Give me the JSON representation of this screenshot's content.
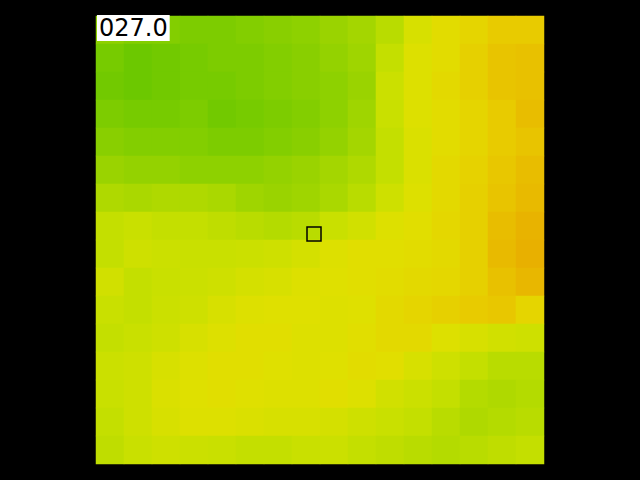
{
  "chart_data": {
    "type": "heatmap",
    "title": "027.0",
    "cells": [
      [
        25.2,
        25.0,
        25.0,
        24.9,
        24.9,
        25.0,
        25.1,
        25.2,
        25.4,
        25.6,
        26.0,
        26.8,
        27.3,
        27.6,
        28.0,
        28.0
      ],
      [
        24.8,
        24.6,
        24.7,
        24.8,
        24.9,
        24.9,
        25.0,
        25.1,
        25.3,
        25.5,
        26.2,
        27.0,
        27.3,
        27.8,
        28.2,
        28.3
      ],
      [
        24.7,
        24.6,
        24.7,
        24.8,
        24.8,
        24.9,
        25.0,
        25.1,
        25.2,
        25.4,
        26.4,
        27.0,
        27.4,
        27.8,
        28.2,
        28.3
      ],
      [
        24.9,
        24.8,
        24.8,
        24.9,
        24.7,
        24.8,
        24.9,
        25.0,
        25.2,
        25.5,
        26.3,
        27.0,
        27.3,
        27.6,
        28.0,
        28.4
      ],
      [
        25.1,
        25.0,
        25.0,
        25.0,
        24.9,
        24.9,
        25.0,
        25.1,
        25.3,
        25.6,
        26.2,
        26.9,
        27.3,
        27.6,
        28.0,
        28.2
      ],
      [
        25.4,
        25.3,
        25.3,
        25.2,
        25.2,
        25.2,
        25.3,
        25.4,
        25.6,
        25.8,
        26.2,
        26.9,
        27.4,
        27.7,
        28.1,
        28.4
      ],
      [
        25.8,
        25.7,
        25.8,
        25.8,
        25.7,
        25.5,
        25.4,
        25.5,
        25.7,
        26.0,
        26.5,
        27.0,
        27.4,
        27.8,
        28.2,
        28.5
      ],
      [
        26.2,
        26.3,
        26.2,
        26.2,
        26.1,
        26.0,
        25.9,
        26.0,
        26.3,
        26.6,
        27.0,
        27.2,
        27.5,
        27.8,
        28.4,
        28.7
      ],
      [
        26.2,
        26.5,
        26.4,
        26.3,
        26.3,
        26.4,
        26.5,
        26.7,
        27.0,
        27.2,
        27.2,
        27.3,
        27.4,
        27.8,
        28.5,
        28.8
      ],
      [
        26.6,
        26.2,
        26.3,
        26.4,
        26.5,
        26.7,
        26.8,
        27.0,
        27.1,
        27.2,
        27.3,
        27.4,
        27.5,
        27.8,
        28.3,
        28.6
      ],
      [
        26.3,
        26.2,
        26.4,
        26.5,
        26.8,
        27.0,
        27.1,
        27.1,
        27.0,
        27.1,
        27.4,
        27.6,
        27.8,
        28.0,
        28.1,
        27.6
      ],
      [
        26.2,
        26.3,
        26.5,
        26.8,
        27.0,
        27.2,
        27.2,
        27.0,
        27.0,
        27.2,
        27.4,
        27.4,
        27.0,
        26.8,
        26.6,
        26.5
      ],
      [
        26.4,
        26.5,
        26.8,
        27.0,
        27.2,
        27.2,
        27.1,
        27.0,
        27.1,
        27.3,
        27.2,
        26.8,
        26.5,
        26.2,
        26.0,
        26.0
      ],
      [
        26.3,
        26.5,
        26.9,
        27.1,
        27.2,
        27.1,
        27.0,
        27.0,
        27.2,
        27.0,
        26.6,
        26.4,
        26.2,
        25.9,
        25.8,
        25.9
      ],
      [
        26.2,
        26.5,
        26.8,
        27.0,
        27.0,
        26.9,
        26.8,
        26.8,
        26.7,
        26.5,
        26.3,
        26.2,
        26.0,
        25.8,
        25.9,
        26.0
      ],
      [
        26.1,
        26.3,
        26.5,
        26.4,
        26.3,
        26.2,
        26.2,
        26.3,
        26.4,
        26.2,
        26.1,
        26.0,
        25.9,
        26.0,
        26.1,
        26.2
      ]
    ],
    "color_range": [
      24.6,
      28.8
    ],
    "tick_labels": false,
    "grid": false
  }
}
